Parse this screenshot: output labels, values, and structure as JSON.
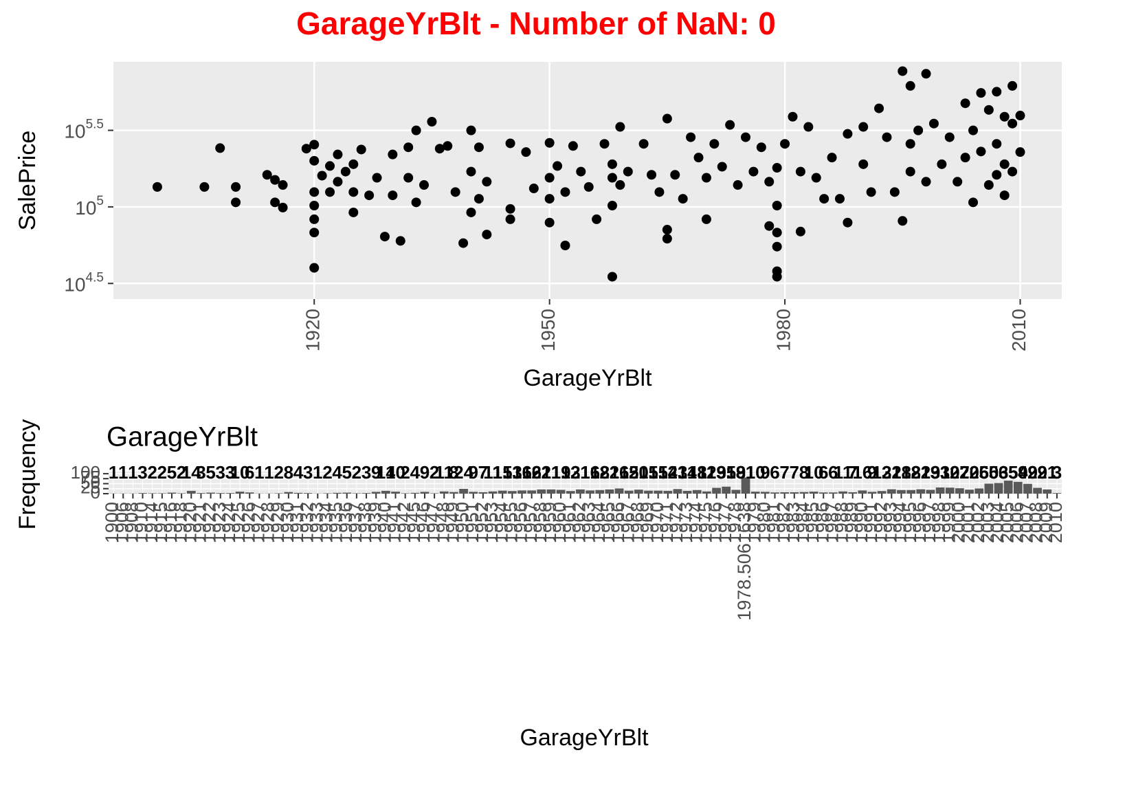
{
  "title": "GarageYrBlt - Number of NaN: 0",
  "chart_data": [
    {
      "type": "scatter",
      "x_label": "GarageYrBlt",
      "y_label": "SalePrice",
      "color": "#000000",
      "ylog": true,
      "grid": true,
      "xlim": [
        1894.4,
        2015.3
      ],
      "xticks": [
        1920,
        1950,
        1980,
        2010
      ],
      "ylim": [
        25000,
        885000
      ],
      "yticks": [
        {
          "value": 31623,
          "label": "10",
          "exponent": "4.5"
        },
        {
          "value": 100000,
          "label": "10",
          "exponent": "5"
        },
        {
          "value": 316228,
          "label": "10",
          "exponent": "5.5"
        }
      ],
      "x": [
        1900,
        1906,
        1908,
        1910,
        1910,
        1914,
        1915,
        1916,
        1915,
        1916,
        1919,
        1920,
        1920,
        1920,
        1920,
        1920,
        1920,
        1920,
        1921,
        1922,
        1922,
        1923,
        1923,
        1924,
        1925,
        1925,
        1925,
        1926,
        1927,
        1928,
        1929,
        1930,
        1930,
        1931,
        1932,
        1932,
        1933,
        1933,
        1934,
        1935,
        1936,
        1937,
        1938,
        1939,
        1940,
        1940,
        1940,
        1941,
        1941,
        1942,
        1942,
        1945,
        1945,
        1945,
        1947,
        1948,
        1950,
        1950,
        1950,
        1950,
        1951,
        1952,
        1952,
        1953,
        1954,
        1955,
        1956,
        1957,
        1958,
        1958,
        1958,
        1958,
        1959,
        1959,
        1960,
        1962,
        1963,
        1964,
        1965,
        1965,
        1965,
        1966,
        1967,
        1968,
        1969,
        1970,
        1970,
        1971,
        1972,
        1973,
        1974,
        1975,
        1976,
        1977,
        1978,
        1978,
        1979,
        1979,
        1979,
        1979,
        1979,
        1979,
        1980,
        1981,
        1982,
        1982,
        1983,
        1984,
        1985,
        1986,
        1987,
        1988,
        1988,
        1990,
        1990,
        1991,
        1992,
        1993,
        1994,
        1995,
        1995,
        1996,
        1996,
        1996,
        1997,
        1998,
        1998,
        1999,
        2000,
        2001,
        2002,
        2003,
        2003,
        2004,
        2004,
        2005,
        2005,
        2006,
        2006,
        2007,
        2007,
        2007,
        2008,
        2008,
        2008,
        2009,
        2009,
        2009,
        2010,
        2010
      ],
      "values": [
        135000,
        135000,
        242000,
        135000,
        107000,
        162000,
        150000,
        139000,
        107000,
        99000,
        240000,
        255000,
        200000,
        125000,
        102000,
        83000,
        68000,
        40000,
        160000,
        185000,
        125000,
        220000,
        146000,
        170000,
        190000,
        125000,
        92000,
        237000,
        119000,
        155000,
        64000,
        220000,
        119000,
        60000,
        245000,
        155000,
        316000,
        107000,
        139000,
        360000,
        240000,
        250000,
        125000,
        58000,
        316000,
        170000,
        92000,
        245000,
        113000,
        146000,
        66000,
        260000,
        97000,
        83000,
        228000,
        132000,
        262000,
        155000,
        113000,
        79000,
        185000,
        125000,
        56000,
        250000,
        170000,
        135000,
        83000,
        258000,
        190000,
        155000,
        102000,
        35000,
        333000,
        139000,
        170000,
        258000,
        162000,
        125000,
        377000,
        71000,
        62000,
        162000,
        113000,
        285000,
        210000,
        155000,
        83000,
        258000,
        183000,
        343000,
        139000,
        285000,
        170000,
        245000,
        146000,
        75000,
        180000,
        102000,
        68000,
        55000,
        38000,
        35000,
        258000,
        388000,
        170000,
        69000,
        333000,
        155000,
        113000,
        210000,
        113000,
        300000,
        79000,
        333000,
        190000,
        125000,
        440000,
        285000,
        125000,
        770000,
        81000,
        617000,
        258000,
        170000,
        316000,
        740000,
        146000,
        350000,
        190000,
        285000,
        146000,
        475000,
        210000,
        316000,
        107000,
        555000,
        230000,
        430000,
        139000,
        565000,
        258000,
        162000,
        388000,
        190000,
        119000,
        617000,
        350000,
        170000,
        395000,
        228000
      ]
    },
    {
      "type": "bar",
      "title": "GarageYrBlt",
      "x_label": "GarageYrBlt",
      "y_label": "Frequency",
      "color": "#595959",
      "grid": true,
      "ylim": [
        0,
        110
      ],
      "yticks": [
        0,
        25,
        50,
        75,
        100
      ],
      "categories": [
        "1900",
        "1906",
        "1908",
        "1910",
        "1914",
        "1915",
        "1916",
        "1918",
        "1920",
        "1921",
        "1922",
        "1923",
        "1924",
        "1925",
        "1926",
        "1927",
        "1928",
        "1929",
        "1930",
        "1931",
        "1932",
        "1933",
        "1934",
        "1935",
        "1936",
        "1937",
        "1938",
        "1939",
        "1940",
        "1941",
        "1942",
        "1945",
        "1946",
        "1947",
        "1948",
        "1949",
        "1950",
        "1951",
        "1952",
        "1953",
        "1954",
        "1955",
        "1956",
        "1957",
        "1958",
        "1959",
        "1960",
        "1961",
        "1962",
        "1963",
        "1964",
        "1965",
        "1966",
        "1967",
        "1968",
        "1969",
        "1970",
        "1971",
        "1972",
        "1973",
        "1974",
        "1975",
        "1976",
        "1977",
        "1978",
        "1978.5061638",
        "1979",
        "1980",
        "1981",
        "1982",
        "1983",
        "1984",
        "1985",
        "1986",
        "1987",
        "1988",
        "1989",
        "1990",
        "1991",
        "1992",
        "1993",
        "1994",
        "1995",
        "1996",
        "1997",
        "1998",
        "1999",
        "2000",
        "2001",
        "2002",
        "2003",
        "2004",
        "2005",
        "2006",
        "2007",
        "2008",
        "2009",
        "2010"
      ],
      "values": [
        1,
        1,
        1,
        3,
        2,
        2,
        5,
        2,
        14,
        3,
        5,
        3,
        3,
        10,
        6,
        1,
        1,
        2,
        8,
        4,
        3,
        1,
        2,
        4,
        5,
        2,
        3,
        9,
        14,
        10,
        2,
        4,
        9,
        2,
        11,
        8,
        24,
        9,
        7,
        11,
        15,
        13,
        16,
        16,
        21,
        21,
        19,
        13,
        21,
        16,
        18,
        21,
        26,
        15,
        20,
        15,
        15,
        14,
        23,
        14,
        18,
        11,
        29,
        35,
        19,
        81,
        10,
        9,
        6,
        7,
        7,
        8,
        10,
        6,
        6,
        11,
        7,
        16,
        9,
        13,
        22,
        18,
        18,
        22,
        19,
        31,
        30,
        27,
        20,
        26,
        50,
        53,
        65,
        59,
        49,
        29,
        21,
        3
      ]
    }
  ]
}
